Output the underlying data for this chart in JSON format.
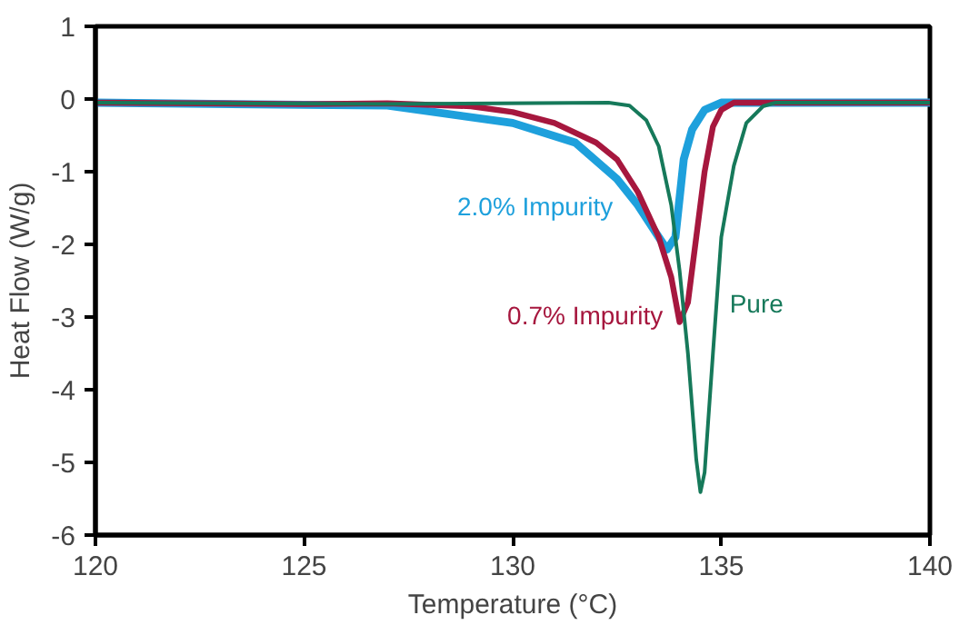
{
  "chart_data": {
    "type": "line",
    "xlabel": "Temperature (°C)",
    "ylabel": "Heat Flow (W/g)",
    "xlim": [
      120,
      140
    ],
    "ylim": [
      -6,
      1
    ],
    "xticks": [
      120,
      125,
      130,
      135,
      140
    ],
    "yticks": [
      -6,
      -5,
      -4,
      -3,
      -2,
      -1,
      0,
      1
    ],
    "grid": false,
    "legend": false,
    "marker": "none",
    "line_style": "solid",
    "series": [
      {
        "name": "2.0% Impurity",
        "color": "#1ea0dc",
        "x": [
          120,
          125,
          127,
          130,
          131.5,
          132.5,
          133,
          133.5,
          133.7,
          133.9,
          134.1,
          134.3,
          134.6,
          135,
          135.3,
          140
        ],
        "values": [
          -0.05,
          -0.08,
          -0.09,
          -0.33,
          -0.6,
          -1.1,
          -1.46,
          -1.9,
          -2.07,
          -1.9,
          -0.83,
          -0.42,
          -0.15,
          -0.05,
          -0.05,
          -0.05
        ]
      },
      {
        "name": "0.7% Impurity",
        "color": "#a6173e",
        "x": [
          120,
          125,
          127,
          129,
          130,
          131,
          132,
          132.5,
          133,
          133.5,
          133.8,
          134,
          134.2,
          134.4,
          134.6,
          134.8,
          135,
          135.3,
          140
        ],
        "values": [
          -0.05,
          -0.07,
          -0.06,
          -0.1,
          -0.18,
          -0.33,
          -0.6,
          -0.83,
          -1.28,
          -1.9,
          -2.45,
          -3.07,
          -2.8,
          -1.9,
          -1.0,
          -0.38,
          -0.15,
          -0.05,
          -0.05
        ]
      },
      {
        "name": "Pure",
        "color": "#16795a",
        "x": [
          120,
          127,
          132.3,
          132.8,
          133.2,
          133.5,
          133.8,
          134,
          134.2,
          134.4,
          134.5,
          134.6,
          134.8,
          135,
          135.3,
          135.6,
          136,
          136.3,
          140
        ],
        "values": [
          -0.05,
          -0.07,
          -0.05,
          -0.09,
          -0.29,
          -0.65,
          -1.46,
          -2.36,
          -3.5,
          -4.96,
          -5.41,
          -5.14,
          -3.5,
          -1.9,
          -0.92,
          -0.33,
          -0.1,
          -0.05,
          -0.05
        ]
      }
    ]
  }
}
